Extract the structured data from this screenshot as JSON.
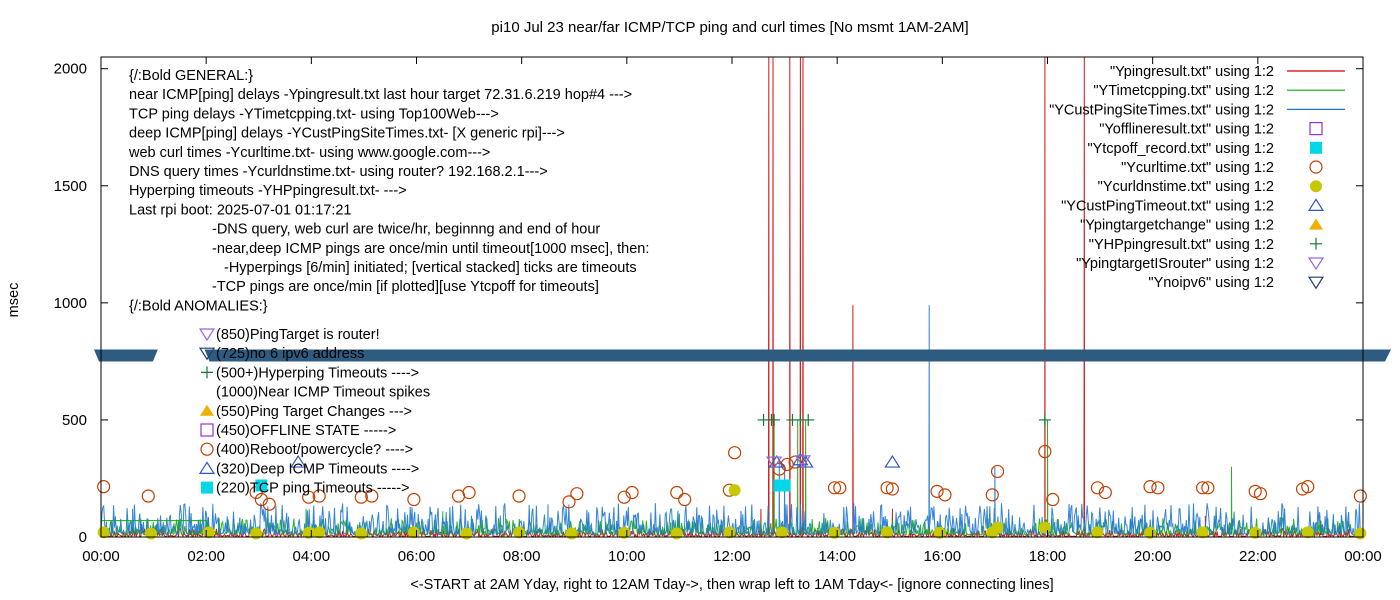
{
  "chart_data": {
    "type": "line",
    "title": "pi10 Jul 23  near/far ICMP/TCP ping and curl times [No msmt 1AM-2AM]",
    "xlabel": "<-START at 2AM Yday, right to 12AM Tday->, then wrap left to 1AM Tday<- [ignore connecting lines]",
    "ylabel": "msec",
    "xlim": [
      0,
      24
    ],
    "ylim": [
      0,
      2050
    ],
    "x_ticks": [
      {
        "v": 0,
        "label": "00:00"
      },
      {
        "v": 2,
        "label": "02:00"
      },
      {
        "v": 4,
        "label": "04:00"
      },
      {
        "v": 6,
        "label": "06:00"
      },
      {
        "v": 8,
        "label": "08:00"
      },
      {
        "v": 10,
        "label": "10:00"
      },
      {
        "v": 12,
        "label": "12:00"
      },
      {
        "v": 14,
        "label": "14:00"
      },
      {
        "v": 16,
        "label": "16:00"
      },
      {
        "v": 18,
        "label": "18:00"
      },
      {
        "v": 20,
        "label": "20:00"
      },
      {
        "v": 22,
        "label": "22:00"
      },
      {
        "v": 24,
        "label": "00:00"
      }
    ],
    "y_ticks": [
      {
        "v": 0,
        "label": "0"
      },
      {
        "v": 500,
        "label": "500"
      },
      {
        "v": 1000,
        "label": "1000"
      },
      {
        "v": 1500,
        "label": "1500"
      },
      {
        "v": 2000,
        "label": "2000"
      }
    ],
    "legend_position": "top-right",
    "legend": [
      {
        "label": "\"Ypingresult.txt\" using 1:2",
        "symbol": "line",
        "color": "#cc0000"
      },
      {
        "label": "\"YTimetcpping.txt\" using 1:2",
        "symbol": "line",
        "color": "#11aa11"
      },
      {
        "label": "\"YCustPingSiteTimes.txt\" using 1:2",
        "symbol": "line",
        "color": "#1f77d4"
      },
      {
        "label": "\"Yofflineresult.txt\" using 1:2",
        "symbol": "open-square",
        "color": "#9933cc"
      },
      {
        "label": "\"Ytcpoff_record.txt\" using 1:2",
        "symbol": "filled-square",
        "color": "#00d8e8"
      },
      {
        "label": "\"Ycurltime.txt\" using 1:2",
        "symbol": "open-circle",
        "color": "#c04000"
      },
      {
        "label": "\"Ycurldnstime.txt\" using 1:2",
        "symbol": "filled-circle",
        "color": "#c8c800"
      },
      {
        "label": "\"YCustPingTimeout.txt\" using 1:2",
        "symbol": "open-triangle-up",
        "color": "#3355cc"
      },
      {
        "label": "\"Ypingtargetchange\" using 1:2",
        "symbol": "filled-triangle-up",
        "color": "#f0b000"
      },
      {
        "label": "\"YHPpingresult.txt\" using 1:2",
        "symbol": "plus",
        "color": "#117733"
      },
      {
        "label": "\"YpingtargetISrouter\" using 1:2",
        "symbol": "open-triangle-down",
        "color": "#9966dd"
      },
      {
        "label": "\"Ynoipv6\" using 1:2",
        "symbol": "open-triangle-down",
        "color": "#1f3a6e"
      }
    ],
    "info_lines": [
      {
        "text": "{/:Bold GENERAL:}",
        "indent": 0
      },
      {
        "text": "near ICMP[ping] delays -Ypingresult.txt last hour target 72.31.6.219 hop#4 --->",
        "indent": 0
      },
      {
        "text": "TCP ping delays -YTimetcpping.txt- using Top100Web--->",
        "indent": 0
      },
      {
        "text": "deep ICMP[ping] delays -YCustPingSiteTimes.txt- [X generic rpi]--->",
        "indent": 0
      },
      {
        "text": "web curl times -Ycurltime.txt- using www.google.com--->",
        "indent": 0
      },
      {
        "text": "DNS query times -Ycurldnstime.txt- using router? 192.168.2.1--->",
        "indent": 0
      },
      {
        "text": "Hyperping timeouts -YHPpingresult.txt- --->",
        "indent": 0
      },
      {
        "text": "Last rpi boot: 2025-07-01 01:17:21",
        "indent": 0
      },
      {
        "text": "-DNS query, web curl are twice/hr, beginnng and end of hour",
        "indent": 1
      },
      {
        "text": "-near,deep ICMP pings are once/min until timeout[1000 msec], then:",
        "indent": 1
      },
      {
        "text": "-Hyperpings [6/min] initiated; [vertical stacked] ticks are timeouts",
        "indent": 2
      },
      {
        "text": "-TCP pings are once/min [if plotted][use Ytcpoff for timeouts]",
        "indent": 1
      },
      {
        "text": "{/:Bold ANOMALIES:}",
        "indent": 0
      }
    ],
    "anomaly_lines": [
      {
        "text": "(850)PingTarget is router!",
        "symbol": "open-triangle-down",
        "color": "#9966dd"
      },
      {
        "text": "(725)no 6 ipv6 address",
        "symbol": "open-triangle-down",
        "color": "#1f3a6e"
      },
      {
        "text": "(500+)Hyperping Timeouts ---->",
        "symbol": "plus",
        "color": "#117733"
      },
      {
        "text": "(1000)Near ICMP Timeout spikes",
        "symbol": "none",
        "color": "#000000"
      },
      {
        "text": "(550)Ping Target Changes --->",
        "symbol": "filled-triangle-up",
        "color": "#f0b000"
      },
      {
        "text": "(450)OFFLINE STATE ----->",
        "symbol": "open-square",
        "color": "#9933cc"
      },
      {
        "text": "(400)Reboot/powercycle? ---->",
        "symbol": "open-circle",
        "color": "#c04000"
      },
      {
        "text": "(320)Deep ICMP Timeouts ---->",
        "symbol": "open-triangle-up",
        "color": "#3355cc"
      },
      {
        "text": "(220)TCP ping Timeouts ----->",
        "symbol": "filled-square",
        "color": "#00d8e8"
      }
    ],
    "series": [
      {
        "name": "\"Ypingresult.txt\" using 1:2",
        "color": "#cc0000",
        "baseline": 8,
        "noise": 14,
        "seed": 11,
        "spikes": [
          [
            12.7,
            2050
          ],
          [
            12.78,
            2050
          ],
          [
            13.1,
            2050
          ],
          [
            13.3,
            2050
          ],
          [
            13.35,
            2050
          ],
          [
            14.3,
            990
          ],
          [
            15.05,
            120
          ],
          [
            17.95,
            2050
          ],
          [
            18.7,
            2050
          ],
          [
            12.55,
            120
          ],
          [
            21.0,
            90
          ],
          [
            23.2,
            70
          ]
        ]
      },
      {
        "name": "\"YTimetcpping.txt\" using 1:2",
        "color": "#11aa11",
        "baseline": 30,
        "noise": 30,
        "seed": 23,
        "spikes": [
          [
            12.8,
            500
          ],
          [
            13.25,
            500
          ],
          [
            13.4,
            500
          ],
          [
            3.9,
            120
          ],
          [
            6.5,
            110
          ],
          [
            18.0,
            500
          ],
          [
            21.5,
            300
          ],
          [
            11.0,
            100
          ]
        ]
      },
      {
        "name": "\"YCustPingSiteTimes.txt\" using 1:2",
        "color": "#1f77d4",
        "baseline": 40,
        "noise": 55,
        "seed": 37,
        "spikes": [
          [
            15.75,
            990
          ],
          [
            12.9,
            330
          ],
          [
            13.0,
            300
          ],
          [
            17.0,
            300
          ],
          [
            0.6,
            120
          ],
          [
            8.5,
            140
          ]
        ]
      }
    ],
    "tcp_flat_line": {
      "color": "#11aa11",
      "points": [
        [
          0,
          70
        ],
        [
          2.0,
          70
        ],
        [
          2.03,
          20
        ]
      ]
    },
    "markers": {
      "curl_open_circles": {
        "color": "#c04000",
        "points": [
          [
            0.05,
            215
          ],
          [
            0.9,
            175
          ],
          [
            2.95,
            190
          ],
          [
            3.05,
            160
          ],
          [
            3.2,
            140
          ],
          [
            3.95,
            170
          ],
          [
            4.15,
            175
          ],
          [
            4.95,
            170
          ],
          [
            5.15,
            175
          ],
          [
            5.95,
            160
          ],
          [
            6.8,
            175
          ],
          [
            7.0,
            190
          ],
          [
            7.95,
            175
          ],
          [
            8.9,
            150
          ],
          [
            9.05,
            185
          ],
          [
            9.95,
            170
          ],
          [
            10.1,
            190
          ],
          [
            10.95,
            190
          ],
          [
            11.1,
            160
          ],
          [
            11.95,
            200
          ],
          [
            12.05,
            360
          ],
          [
            12.9,
            290
          ],
          [
            13.05,
            310
          ],
          [
            13.2,
            320
          ],
          [
            13.95,
            210
          ],
          [
            14.05,
            210
          ],
          [
            14.95,
            210
          ],
          [
            15.05,
            205
          ],
          [
            15.9,
            195
          ],
          [
            16.05,
            180
          ],
          [
            16.95,
            180
          ],
          [
            17.05,
            280
          ],
          [
            17.95,
            365
          ],
          [
            18.1,
            160
          ],
          [
            18.95,
            210
          ],
          [
            19.1,
            190
          ],
          [
            19.95,
            215
          ],
          [
            20.1,
            210
          ],
          [
            20.95,
            210
          ],
          [
            21.05,
            210
          ],
          [
            21.95,
            195
          ],
          [
            22.05,
            185
          ],
          [
            22.85,
            205
          ],
          [
            22.95,
            215
          ],
          [
            23.95,
            175
          ]
        ]
      },
      "dns_filled_circles": {
        "color": "#c8c800",
        "points": [
          [
            0.05,
            20
          ],
          [
            0.95,
            15
          ],
          [
            2.05,
            20
          ],
          [
            2.95,
            15
          ],
          [
            3.95,
            18
          ],
          [
            4.15,
            20
          ],
          [
            4.95,
            15
          ],
          [
            5.95,
            20
          ],
          [
            6.95,
            15
          ],
          [
            7.95,
            20
          ],
          [
            8.95,
            15
          ],
          [
            9.95,
            18
          ],
          [
            10.95,
            15
          ],
          [
            11.95,
            20
          ],
          [
            12.05,
            200
          ],
          [
            12.95,
            20
          ],
          [
            13.95,
            18
          ],
          [
            14.95,
            20
          ],
          [
            15.95,
            18
          ],
          [
            16.95,
            20
          ],
          [
            17.05,
            40
          ],
          [
            17.95,
            40
          ],
          [
            18.95,
            20
          ],
          [
            19.95,
            18
          ],
          [
            20.95,
            20
          ],
          [
            21.95,
            18
          ],
          [
            22.95,
            20
          ],
          [
            23.95,
            15
          ]
        ]
      },
      "tcp_off_filled_squares": {
        "color": "#00d8e8",
        "points": [
          [
            3.05,
            220
          ],
          [
            12.9,
            220
          ],
          [
            13.0,
            220
          ]
        ]
      },
      "deep_timeout_open_triangles": {
        "color": "#3355cc",
        "points": [
          [
            3.75,
            320
          ],
          [
            12.85,
            320
          ],
          [
            13.3,
            330
          ],
          [
            13.4,
            320
          ],
          [
            15.05,
            320
          ]
        ]
      },
      "offline_open_triangles_down": {
        "color": "#9966dd",
        "points": [
          [
            12.8,
            320
          ],
          [
            13.35,
            325
          ]
        ]
      },
      "hyperping_plus": {
        "color": "#117733",
        "points": [
          [
            12.6,
            500
          ],
          [
            12.75,
            500
          ],
          [
            12.8,
            500
          ],
          [
            13.15,
            500
          ],
          [
            13.3,
            500
          ],
          [
            13.45,
            500
          ],
          [
            17.95,
            500
          ]
        ]
      }
    },
    "noipv6_band": {
      "color": "#2e5c80",
      "y": 775,
      "gap": [
        1.1,
        1.95
      ]
    }
  }
}
